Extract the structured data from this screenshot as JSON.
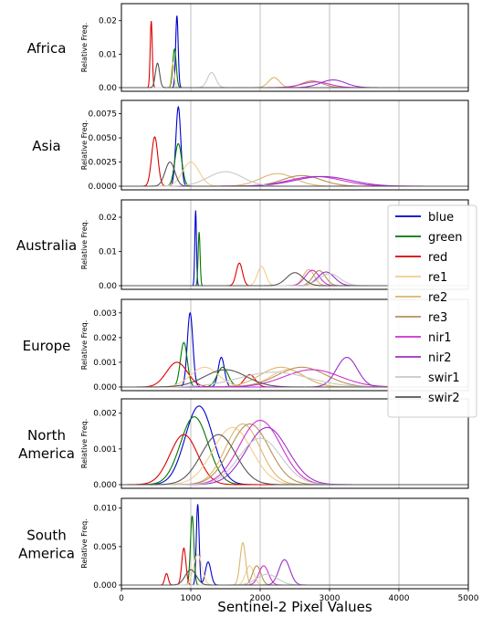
{
  "chart_data": {
    "type": "line",
    "xlabel": "Sentinel-2 Pixel Values",
    "ylabel": "Relative Freq.",
    "xlim": [
      0,
      5000
    ],
    "xticks": [
      0,
      1000,
      2000,
      3000,
      4000,
      5000
    ],
    "grid": "x",
    "legend": {
      "placement": "right, over Australia/Europe panels",
      "entries": [
        {
          "name": "blue",
          "color": "#0000cc"
        },
        {
          "name": "green",
          "color": "#007700"
        },
        {
          "name": "red",
          "color": "#dd0000"
        },
        {
          "name": "re1",
          "color": "#f3cc8e"
        },
        {
          "name": "re2",
          "color": "#dcb56a"
        },
        {
          "name": "re3",
          "color": "#b39257"
        },
        {
          "name": "nir1",
          "color": "#d02fd0"
        },
        {
          "name": "nir2",
          "color": "#9b30c8"
        },
        {
          "name": "swir1",
          "color": "#c8c8c8"
        },
        {
          "name": "swir2",
          "color": "#555555"
        }
      ]
    },
    "panels": [
      {
        "region": [
          "Africa"
        ],
        "ylim": [
          0,
          0.024
        ],
        "yticks": [
          {
            "v": 0,
            "label": "0.00"
          },
          {
            "v": 0.01,
            "label": "0.01"
          },
          {
            "v": 0.02,
            "label": "0.02"
          }
        ],
        "series": {
          "blue": [
            {
              "mu": 800,
              "sd": 18,
              "h": 0.0215
            }
          ],
          "green": [
            {
              "mu": 765,
              "sd": 25,
              "h": 0.0115
            }
          ],
          "red": [
            {
              "mu": 430,
              "sd": 15,
              "h": 0.0199
            }
          ],
          "re1": [
            {
              "mu": 740,
              "sd": 20,
              "h": 0.0075
            }
          ],
          "re2": [
            {
              "mu": 2200,
              "sd": 80,
              "h": 0.003
            }
          ],
          "re3": [
            {
              "mu": 2750,
              "sd": 150,
              "h": 0.002
            }
          ],
          "nir1": [
            {
              "mu": 2800,
              "sd": 200,
              "h": 0.0017
            }
          ],
          "nir2": [
            {
              "mu": 3050,
              "sd": 180,
              "h": 0.0023
            }
          ],
          "swir1": [
            {
              "mu": 1300,
              "sd": 60,
              "h": 0.0045
            }
          ],
          "swir2": [
            {
              "mu": 520,
              "sd": 30,
              "h": 0.0073
            }
          ]
        }
      },
      {
        "region": [
          "Asia"
        ],
        "ylim": [
          0,
          0.0085
        ],
        "yticks": [
          {
            "v": 0,
            "label": "0.0000"
          },
          {
            "v": 0.0025,
            "label": "0.0025"
          },
          {
            "v": 0.005,
            "label": "0.0050"
          },
          {
            "v": 0.0075,
            "label": "0.0075"
          }
        ],
        "series": {
          "blue": [
            {
              "mu": 820,
              "sd": 35,
              "h": 0.0082
            }
          ],
          "green": [
            {
              "mu": 820,
              "sd": 50,
              "h": 0.0044
            }
          ],
          "red": [
            {
              "mu": 480,
              "sd": 45,
              "h": 0.0051
            }
          ],
          "re1": [
            {
              "mu": 1000,
              "sd": 120,
              "h": 0.0025
            }
          ],
          "re2": [
            {
              "mu": 2250,
              "sd": 250,
              "h": 0.0013
            }
          ],
          "re3": [
            {
              "mu": 2600,
              "sd": 280,
              "h": 0.0011
            }
          ],
          "nir1": [
            {
              "mu": 2800,
              "sd": 380,
              "h": 0.001
            }
          ],
          "nir2": [
            {
              "mu": 2900,
              "sd": 400,
              "h": 0.001
            }
          ],
          "swir1": [
            {
              "mu": 1500,
              "sd": 250,
              "h": 0.0015
            }
          ],
          "swir2": [
            {
              "mu": 700,
              "sd": 70,
              "h": 0.0025
            }
          ]
        }
      },
      {
        "region": [
          "Australia"
        ],
        "ylim": [
          0,
          0.024
        ],
        "yticks": [
          {
            "v": 0,
            "label": "0.00"
          },
          {
            "v": 0.01,
            "label": "0.01"
          },
          {
            "v": 0.02,
            "label": "0.02"
          }
        ],
        "series": {
          "blue": [
            {
              "mu": 1070,
              "sd": 12,
              "h": 0.022
            }
          ],
          "green": [
            {
              "mu": 1120,
              "sd": 14,
              "h": 0.0157
            }
          ],
          "red": [
            {
              "mu": 1700,
              "sd": 45,
              "h": 0.0066
            }
          ],
          "re1": [
            {
              "mu": 2020,
              "sd": 60,
              "h": 0.0056
            }
          ],
          "re2": [
            {
              "mu": 2700,
              "sd": 80,
              "h": 0.0047
            }
          ],
          "re3": [
            {
              "mu": 2850,
              "sd": 90,
              "h": 0.0044
            }
          ],
          "nir1": [
            {
              "mu": 2750,
              "sd": 100,
              "h": 0.0045
            }
          ],
          "nir2": [
            {
              "mu": 2950,
              "sd": 120,
              "h": 0.004
            }
          ],
          "swir1": [
            {
              "mu": 3000,
              "sd": 150,
              "h": 0.0035
            }
          ],
          "swir2": [
            {
              "mu": 2500,
              "sd": 120,
              "h": 0.0038
            }
          ]
        }
      },
      {
        "region": [
          "Europe"
        ],
        "ylim": [
          0,
          0.0034
        ],
        "yticks": [
          {
            "v": 0,
            "label": "0.000"
          },
          {
            "v": 0.001,
            "label": "0.001"
          },
          {
            "v": 0.002,
            "label": "0.002"
          },
          {
            "v": 0.003,
            "label": "0.003"
          }
        ],
        "series": {
          "blue": [
            {
              "mu": 990,
              "sd": 40,
              "h": 0.003
            },
            {
              "mu": 1440,
              "sd": 45,
              "h": 0.0012
            }
          ],
          "green": [
            {
              "mu": 900,
              "sd": 50,
              "h": 0.0018
            },
            {
              "mu": 1460,
              "sd": 80,
              "h": 0.0008
            }
          ],
          "red": [
            {
              "mu": 800,
              "sd": 150,
              "h": 0.001
            },
            {
              "mu": 1850,
              "sd": 80,
              "h": 0.0005
            }
          ],
          "re1": [
            {
              "mu": 1200,
              "sd": 200,
              "h": 0.0008
            },
            {
              "mu": 2400,
              "sd": 250,
              "h": 0.0007
            }
          ],
          "re2": [
            {
              "mu": 2300,
              "sd": 300,
              "h": 0.0008
            }
          ],
          "re3": [
            {
              "mu": 2600,
              "sd": 350,
              "h": 0.0008
            }
          ],
          "nir1": [
            {
              "mu": 2750,
              "sd": 400,
              "h": 0.0007
            }
          ],
          "nir2": [
            {
              "mu": 3250,
              "sd": 150,
              "h": 0.0012
            }
          ],
          "swir1": [
            {
              "mu": 2200,
              "sd": 500,
              "h": 0.0006
            }
          ],
          "swir2": [
            {
              "mu": 1500,
              "sd": 300,
              "h": 0.0007
            }
          ]
        }
      },
      {
        "region": [
          "North",
          "America"
        ],
        "ylim": [
          0,
          0.0023
        ],
        "yticks": [
          {
            "v": 0,
            "label": "0.000"
          },
          {
            "v": 0.001,
            "label": "0.001"
          },
          {
            "v": 0.002,
            "label": "0.002"
          }
        ],
        "series": {
          "blue": [
            {
              "mu": 1120,
              "sd": 200,
              "h": 0.0022
            }
          ],
          "green": [
            {
              "mu": 1050,
              "sd": 200,
              "h": 0.0019
            }
          ],
          "red": [
            {
              "mu": 900,
              "sd": 200,
              "h": 0.0014
            }
          ],
          "re1": [
            {
              "mu": 1600,
              "sd": 280,
              "h": 0.0016
            }
          ],
          "re2": [
            {
              "mu": 1750,
              "sd": 250,
              "h": 0.0017
            }
          ],
          "re3": [
            {
              "mu": 1850,
              "sd": 280,
              "h": 0.0017
            }
          ],
          "nir1": [
            {
              "mu": 2000,
              "sd": 300,
              "h": 0.0018
            }
          ],
          "nir2": [
            {
              "mu": 2100,
              "sd": 300,
              "h": 0.0016
            }
          ],
          "swir1": [
            {
              "mu": 2000,
              "sd": 300,
              "h": 0.0013
            }
          ],
          "swir2": [
            {
              "mu": 1400,
              "sd": 250,
              "h": 0.0014
            }
          ]
        }
      },
      {
        "region": [
          "South",
          "America"
        ],
        "ylim": [
          0,
          0.0108
        ],
        "yticks": [
          {
            "v": 0,
            "label": "0.000"
          },
          {
            "v": 0.005,
            "label": "0.005"
          },
          {
            "v": 0.01,
            "label": "0.010"
          }
        ],
        "series": {
          "blue": [
            {
              "mu": 1100,
              "sd": 20,
              "h": 0.0105
            },
            {
              "mu": 1250,
              "sd": 40,
              "h": 0.003
            }
          ],
          "green": [
            {
              "mu": 1020,
              "sd": 25,
              "h": 0.009
            }
          ],
          "red": [
            {
              "mu": 900,
              "sd": 30,
              "h": 0.0048
            },
            {
              "mu": 650,
              "sd": 25,
              "h": 0.0015
            }
          ],
          "re1": [
            {
              "mu": 1100,
              "sd": 60,
              "h": 0.004
            },
            {
              "mu": 1850,
              "sd": 60,
              "h": 0.0025
            }
          ],
          "re2": [
            {
              "mu": 1750,
              "sd": 40,
              "h": 0.0055
            }
          ],
          "re3": [
            {
              "mu": 1950,
              "sd": 60,
              "h": 0.0025
            }
          ],
          "nir1": [
            {
              "mu": 2050,
              "sd": 70,
              "h": 0.0025
            }
          ],
          "nir2": [
            {
              "mu": 2350,
              "sd": 80,
              "h": 0.0033
            }
          ],
          "swir1": [
            {
              "mu": 2100,
              "sd": 150,
              "h": 0.0014
            }
          ],
          "swir2": [
            {
              "mu": 1000,
              "sd": 80,
              "h": 0.002
            }
          ]
        }
      }
    ]
  }
}
